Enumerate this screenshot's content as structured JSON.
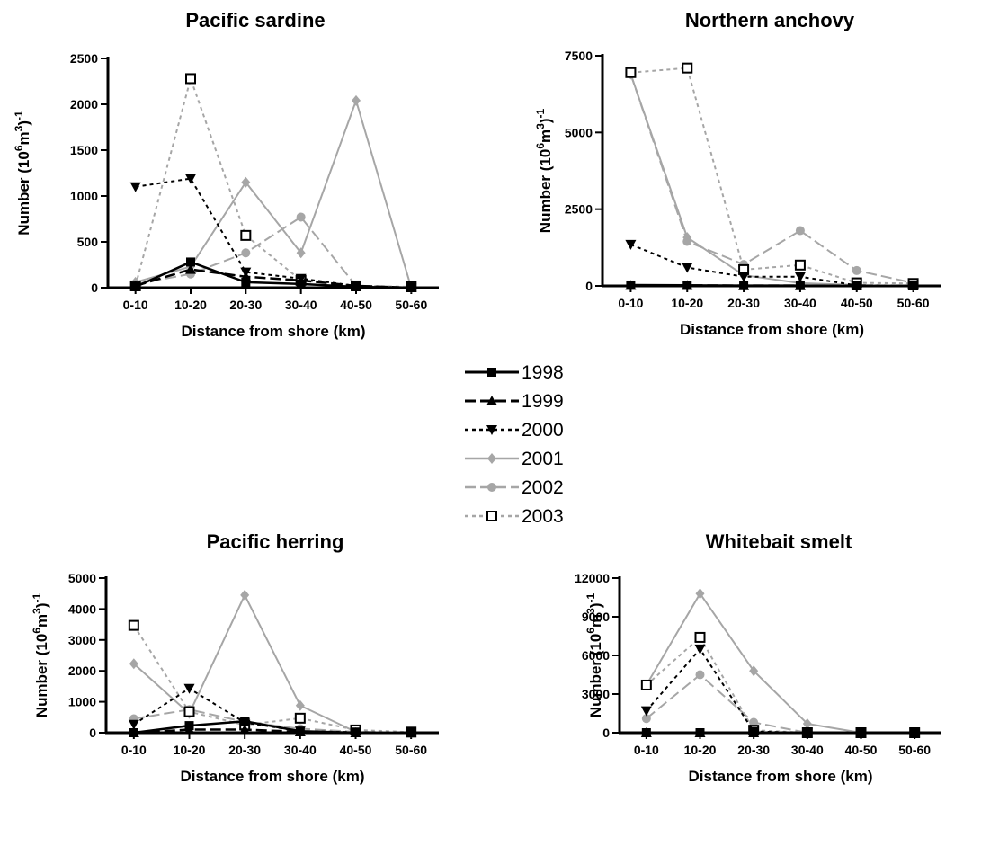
{
  "legend": {
    "entries": [
      "1998",
      "1999",
      "2000",
      "2001",
      "2002",
      "2003"
    ]
  },
  "chart_data": [
    {
      "type": "line",
      "title": "Pacific sardine",
      "xlabel": "Distance from shore (km)",
      "ylabel": "Number (10⁶m³)⁻¹",
      "categories": [
        "0-10",
        "10-20",
        "20-30",
        "30-40",
        "40-50",
        "50-60"
      ],
      "ylim": [
        0,
        2500
      ],
      "yticks": [
        "0",
        "500",
        "1000",
        "1500",
        "2000",
        "2500"
      ],
      "series": [
        {
          "name": "1998",
          "values": [
            10,
            280,
            60,
            40,
            10,
            0
          ]
        },
        {
          "name": "1999",
          "values": [
            20,
            200,
            120,
            80,
            20,
            0
          ]
        },
        {
          "name": "2000",
          "values": [
            1100,
            1190,
            170,
            100,
            20,
            0
          ]
        },
        {
          "name": "2001",
          "values": [
            60,
            230,
            1150,
            380,
            2040,
            0
          ]
        },
        {
          "name": "2002",
          "values": [
            40,
            150,
            380,
            770,
            20,
            0
          ]
        },
        {
          "name": "2003",
          "values": [
            20,
            2280,
            570,
            80,
            20,
            10
          ]
        }
      ]
    },
    {
      "type": "line",
      "title": "Northern anchovy",
      "xlabel": "Distance from shore (km)",
      "ylabel": "Number (10⁶m³)⁻¹",
      "categories": [
        "0-10",
        "10-20",
        "20-30",
        "30-40",
        "40-50",
        "50-60"
      ],
      "ylim": [
        0,
        7500
      ],
      "yticks": [
        "0",
        "2500",
        "5000",
        "7500"
      ],
      "series": [
        {
          "name": "1998",
          "values": [
            30,
            20,
            10,
            10,
            0,
            0
          ]
        },
        {
          "name": "1999",
          "values": [
            20,
            20,
            10,
            10,
            0,
            0
          ]
        },
        {
          "name": "2000",
          "values": [
            1350,
            600,
            300,
            300,
            20,
            0
          ]
        },
        {
          "name": "2001",
          "values": [
            6900,
            1580,
            350,
            90,
            30,
            0
          ]
        },
        {
          "name": "2002",
          "values": [
            6900,
            1450,
            700,
            1800,
            500,
            100
          ]
        },
        {
          "name": "2003",
          "values": [
            6950,
            7100,
            530,
            680,
            100,
            80
          ]
        }
      ]
    },
    {
      "type": "line",
      "title": "Pacific herring",
      "xlabel": "Distance from shore (km)",
      "ylabel": "Number (10⁶m³)⁻¹",
      "categories": [
        "0-10",
        "10-20",
        "20-30",
        "30-40",
        "40-50",
        "50-60"
      ],
      "ylim": [
        0,
        5000
      ],
      "yticks": [
        "0",
        "1000",
        "2000",
        "3000",
        "4000",
        "5000"
      ],
      "series": [
        {
          "name": "1998",
          "values": [
            0,
            230,
            370,
            50,
            0,
            0
          ]
        },
        {
          "name": "1999",
          "values": [
            0,
            100,
            100,
            30,
            0,
            0
          ]
        },
        {
          "name": "2000",
          "values": [
            270,
            1430,
            330,
            50,
            20,
            0
          ]
        },
        {
          "name": "2001",
          "values": [
            2230,
            620,
            4450,
            880,
            30,
            0
          ]
        },
        {
          "name": "2002",
          "values": [
            450,
            750,
            350,
            130,
            30,
            0
          ]
        },
        {
          "name": "2003",
          "values": [
            3470,
            680,
            250,
            470,
            90,
            20
          ]
        }
      ]
    },
    {
      "type": "line",
      "title": "Whitebait smelt",
      "xlabel": "Distance from shore (km)",
      "ylabel": "Number (10⁶m³)⁻¹",
      "categories": [
        "0-10",
        "10-20",
        "20-30",
        "30-40",
        "40-50",
        "50-60"
      ],
      "ylim": [
        0,
        12000
      ],
      "yticks": [
        "0",
        "3000",
        "6000",
        "9000",
        "12000"
      ],
      "series": [
        {
          "name": "1998",
          "values": [
            0,
            0,
            0,
            0,
            0,
            0
          ]
        },
        {
          "name": "1999",
          "values": [
            0,
            0,
            0,
            0,
            0,
            0
          ]
        },
        {
          "name": "2000",
          "values": [
            1700,
            6500,
            100,
            0,
            0,
            0
          ]
        },
        {
          "name": "2001",
          "values": [
            3700,
            10800,
            4800,
            700,
            0,
            0
          ]
        },
        {
          "name": "2002",
          "values": [
            1100,
            4500,
            800,
            0,
            0,
            0
          ]
        },
        {
          "name": "2003",
          "values": [
            3700,
            7400,
            200,
            0,
            0,
            0
          ]
        }
      ]
    }
  ]
}
